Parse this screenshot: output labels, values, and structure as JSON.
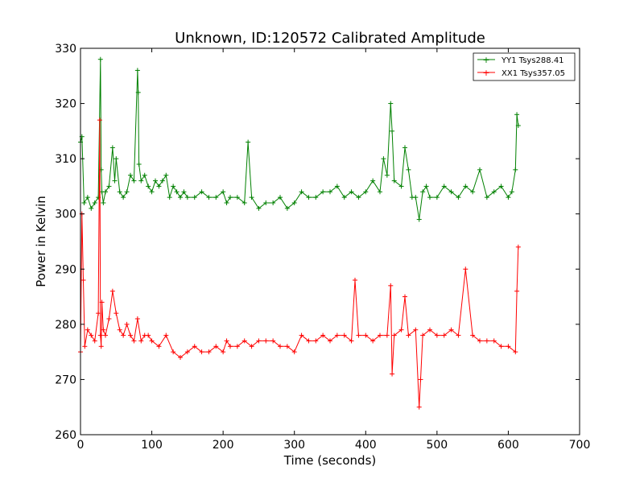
{
  "chart_data": {
    "type": "line",
    "title": "Unknown, ID:120572 Calibrated Amplitude",
    "xlabel": "Time (seconds)",
    "ylabel": "Power in Kelvin",
    "xlim": [
      0,
      700
    ],
    "ylim": [
      260,
      330
    ],
    "xticks": [
      0,
      100,
      200,
      300,
      400,
      500,
      600,
      700
    ],
    "yticks": [
      260,
      270,
      280,
      290,
      300,
      310,
      320,
      330
    ],
    "grid": false,
    "legend_position": "top-right",
    "series": [
      {
        "name": "YY1 Tsys288.41",
        "color": "#008000",
        "marker": "+",
        "x": [
          0,
          2,
          5,
          10,
          15,
          20,
          25,
          28,
          29,
          30,
          32,
          35,
          40,
          45,
          48,
          50,
          55,
          60,
          65,
          70,
          75,
          80,
          81,
          82,
          85,
          90,
          95,
          100,
          105,
          110,
          115,
          120,
          125,
          130,
          135,
          140,
          145,
          150,
          160,
          170,
          180,
          190,
          200,
          205,
          210,
          220,
          230,
          235,
          240,
          250,
          260,
          270,
          280,
          290,
          300,
          310,
          320,
          330,
          340,
          350,
          360,
          370,
          380,
          390,
          400,
          410,
          420,
          425,
          430,
          435,
          437,
          440,
          450,
          455,
          460,
          465,
          470,
          475,
          480,
          485,
          490,
          500,
          510,
          520,
          530,
          540,
          550,
          560,
          570,
          580,
          590,
          600,
          605,
          610,
          612,
          614
        ],
        "y": [
          313,
          314,
          302,
          303,
          301,
          302,
          303,
          328,
          308,
          304,
          302,
          304,
          305,
          312,
          306,
          310,
          304,
          303,
          304,
          307,
          306,
          326,
          322,
          309,
          306,
          307,
          305,
          304,
          306,
          305,
          306,
          307,
          303,
          305,
          304,
          303,
          304,
          303,
          303,
          304,
          303,
          303,
          304,
          302,
          303,
          303,
          302,
          313,
          303,
          301,
          302,
          302,
          303,
          301,
          302,
          304,
          303,
          303,
          304,
          304,
          305,
          303,
          304,
          303,
          304,
          306,
          304,
          310,
          307,
          320,
          315,
          306,
          305,
          312,
          308,
          303,
          303,
          299,
          304,
          305,
          303,
          303,
          305,
          304,
          303,
          305,
          304,
          308,
          303,
          304,
          305,
          303,
          304,
          308,
          318,
          316
        ]
      },
      {
        "name": "XX1 Tsys357.05",
        "color": "#ff0000",
        "marker": "+",
        "x": [
          0,
          2,
          4,
          6,
          10,
          15,
          20,
          25,
          27,
          28,
          29,
          30,
          32,
          35,
          40,
          45,
          50,
          55,
          60,
          65,
          70,
          75,
          80,
          85,
          90,
          95,
          100,
          110,
          120,
          130,
          140,
          150,
          160,
          170,
          180,
          190,
          200,
          205,
          210,
          220,
          230,
          240,
          250,
          260,
          270,
          280,
          290,
          300,
          310,
          320,
          330,
          340,
          350,
          360,
          370,
          380,
          385,
          390,
          400,
          410,
          420,
          430,
          435,
          437,
          440,
          450,
          455,
          460,
          470,
          475,
          477,
          480,
          490,
          500,
          510,
          520,
          530,
          540,
          550,
          560,
          570,
          580,
          590,
          600,
          610,
          612,
          614
        ],
        "y": [
          275,
          300,
          288,
          276,
          279,
          278,
          277,
          282,
          317,
          278,
          276,
          284,
          279,
          278,
          281,
          286,
          282,
          279,
          278,
          280,
          278,
          277,
          281,
          277,
          278,
          278,
          277,
          276,
          278,
          275,
          274,
          275,
          276,
          275,
          275,
          276,
          275,
          277,
          276,
          276,
          277,
          276,
          277,
          277,
          277,
          276,
          276,
          275,
          278,
          277,
          277,
          278,
          277,
          278,
          278,
          277,
          288,
          278,
          278,
          277,
          278,
          278,
          287,
          271,
          278,
          279,
          285,
          278,
          279,
          265,
          270,
          278,
          279,
          278,
          278,
          279,
          278,
          290,
          278,
          277,
          277,
          277,
          276,
          276,
          275,
          286,
          294
        ]
      }
    ]
  }
}
